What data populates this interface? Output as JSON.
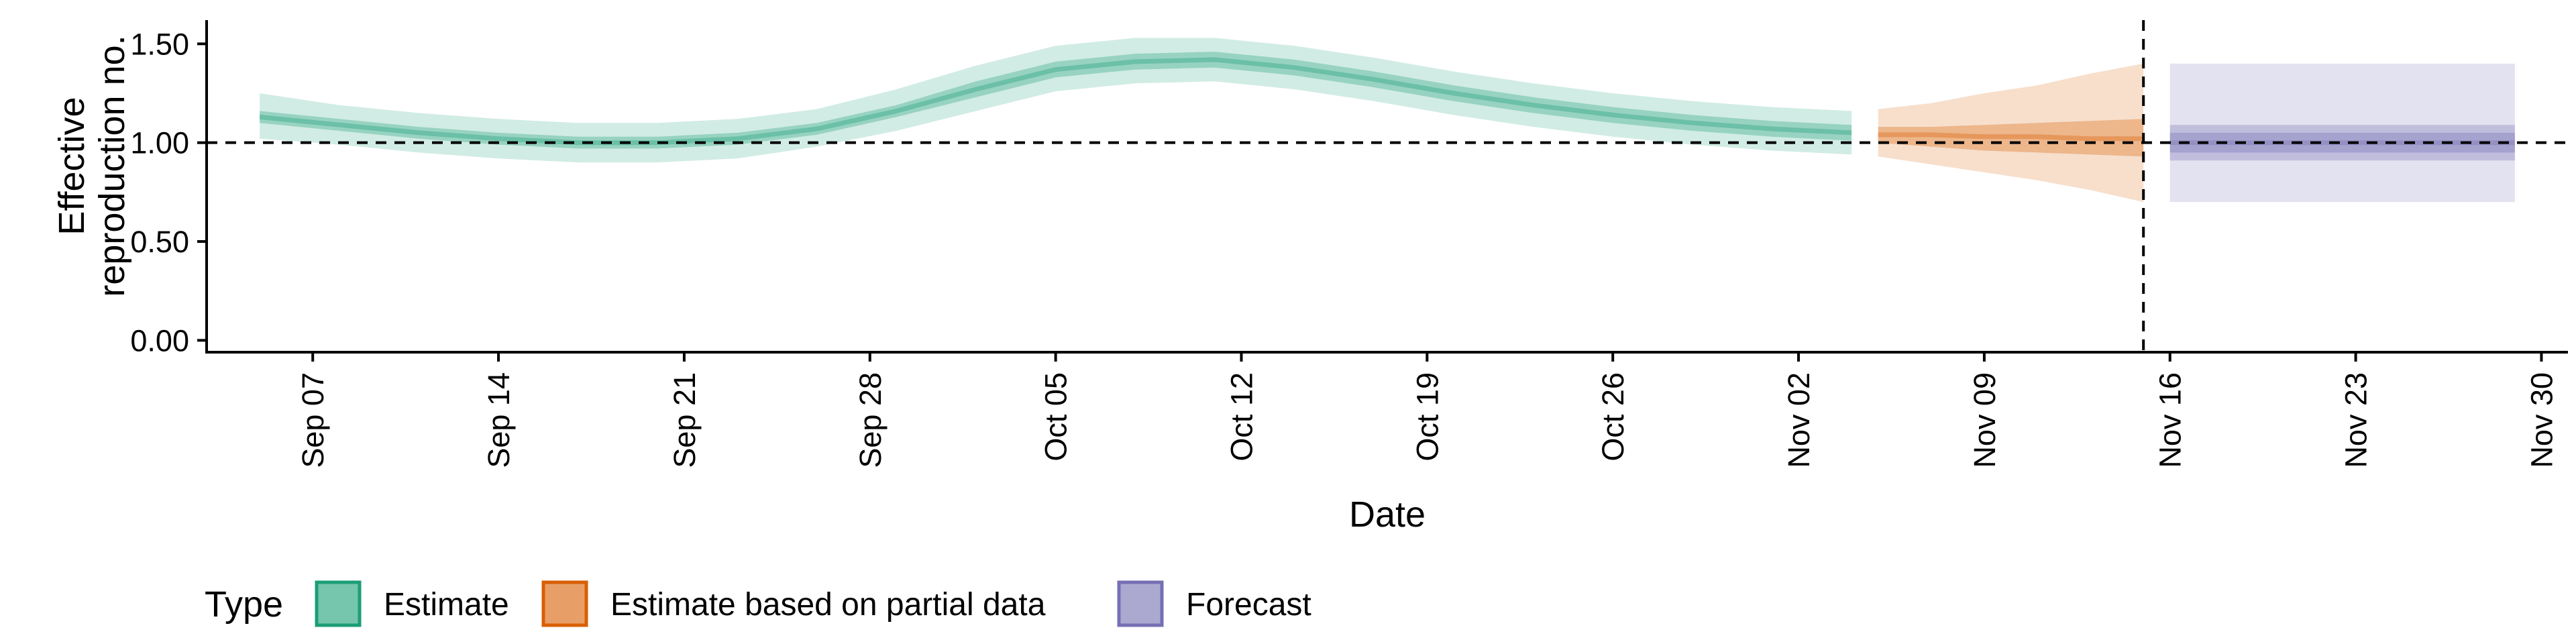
{
  "chart_data": {
    "type": "area",
    "xlabel": "Date",
    "ylabel": [
      "Effective",
      "reproduction no."
    ],
    "xlim": [
      "2020-09-03",
      "2020-12-01"
    ],
    "ylim": [
      -0.06,
      1.62
    ],
    "x_ticks": [
      "2020-09-07",
      "2020-09-14",
      "2020-09-21",
      "2020-09-28",
      "2020-10-05",
      "2020-10-12",
      "2020-10-19",
      "2020-10-26",
      "2020-11-02",
      "2020-11-09",
      "2020-11-16",
      "2020-11-23",
      "2020-11-30"
    ],
    "x_tick_labels": [
      "Sep 07",
      "Sep 14",
      "Sep 21",
      "Sep 28",
      "Oct 05",
      "Oct 12",
      "Oct 19",
      "Oct 26",
      "Nov 02",
      "Nov 09",
      "Nov 16",
      "Nov 23",
      "Nov 30"
    ],
    "y_ticks": [
      0.0,
      0.5,
      1.0,
      1.5
    ],
    "y_tick_labels": [
      "0.00",
      "0.50",
      "1.00",
      "1.50"
    ],
    "reference_hline": 1.0,
    "reference_vline": "2020-11-15",
    "legend": {
      "title": "Type",
      "position": "bottom-left",
      "entries": [
        {
          "label": "Estimate",
          "color": "#1b9e77"
        },
        {
          "label": "Estimate based on partial data",
          "color": "#d95f02"
        },
        {
          "label": "Forecast",
          "color": "#7570b3"
        }
      ]
    },
    "series": [
      {
        "name": "Estimate",
        "color": "#1b9e77",
        "x": [
          "2020-09-05",
          "2020-09-08",
          "2020-09-11",
          "2020-09-14",
          "2020-09-17",
          "2020-09-20",
          "2020-09-23",
          "2020-09-26",
          "2020-09-29",
          "2020-10-02",
          "2020-10-05",
          "2020-10-08",
          "2020-10-11",
          "2020-10-14",
          "2020-10-17",
          "2020-10-20",
          "2020-10-23",
          "2020-10-26",
          "2020-10-29",
          "2020-11-01",
          "2020-11-04"
        ],
        "median": [
          1.13,
          1.09,
          1.05,
          1.02,
          1.0,
          1.0,
          1.02,
          1.07,
          1.16,
          1.27,
          1.37,
          1.41,
          1.42,
          1.38,
          1.32,
          1.25,
          1.19,
          1.14,
          1.1,
          1.07,
          1.05
        ],
        "lower_50": [
          1.1,
          1.06,
          1.02,
          0.99,
          0.97,
          0.97,
          0.99,
          1.04,
          1.13,
          1.23,
          1.33,
          1.37,
          1.38,
          1.34,
          1.28,
          1.21,
          1.15,
          1.1,
          1.06,
          1.03,
          1.01
        ],
        "upper_50": [
          1.16,
          1.12,
          1.08,
          1.05,
          1.03,
          1.03,
          1.05,
          1.1,
          1.19,
          1.31,
          1.41,
          1.45,
          1.46,
          1.42,
          1.36,
          1.29,
          1.23,
          1.18,
          1.14,
          1.11,
          1.09
        ],
        "lower_90": [
          1.02,
          0.99,
          0.95,
          0.92,
          0.9,
          0.9,
          0.92,
          0.98,
          1.06,
          1.16,
          1.26,
          1.3,
          1.31,
          1.27,
          1.21,
          1.14,
          1.08,
          1.03,
          0.99,
          0.96,
          0.94
        ],
        "upper_90": [
          1.25,
          1.19,
          1.15,
          1.12,
          1.1,
          1.1,
          1.12,
          1.17,
          1.27,
          1.39,
          1.49,
          1.53,
          1.53,
          1.49,
          1.43,
          1.36,
          1.3,
          1.25,
          1.21,
          1.18,
          1.16
        ]
      },
      {
        "name": "Estimate based on partial data",
        "color": "#d95f02",
        "x": [
          "2020-11-05",
          "2020-11-07",
          "2020-11-09",
          "2020-11-11",
          "2020-11-13",
          "2020-11-15"
        ],
        "median": [
          1.04,
          1.04,
          1.03,
          1.03,
          1.02,
          1.02
        ],
        "lower_50": [
          1.0,
          0.98,
          0.96,
          0.95,
          0.94,
          0.93
        ],
        "upper_50": [
          1.08,
          1.08,
          1.09,
          1.1,
          1.11,
          1.12
        ],
        "lower_90": [
          0.93,
          0.89,
          0.85,
          0.81,
          0.76,
          0.7
        ],
        "upper_90": [
          1.17,
          1.2,
          1.25,
          1.29,
          1.35,
          1.4
        ]
      },
      {
        "name": "Forecast",
        "color": "#7570b3",
        "x": [
          "2020-11-16",
          "2020-11-29"
        ],
        "median": [
          1.0,
          1.0
        ],
        "lower_50": [
          0.91,
          0.91
        ],
        "upper_50": [
          1.09,
          1.09
        ],
        "lower_20": [
          0.95,
          0.95
        ],
        "upper_20": [
          1.05,
          1.05
        ],
        "lower_90": [
          0.7,
          0.7
        ],
        "upper_90": [
          1.4,
          1.4
        ]
      }
    ]
  }
}
